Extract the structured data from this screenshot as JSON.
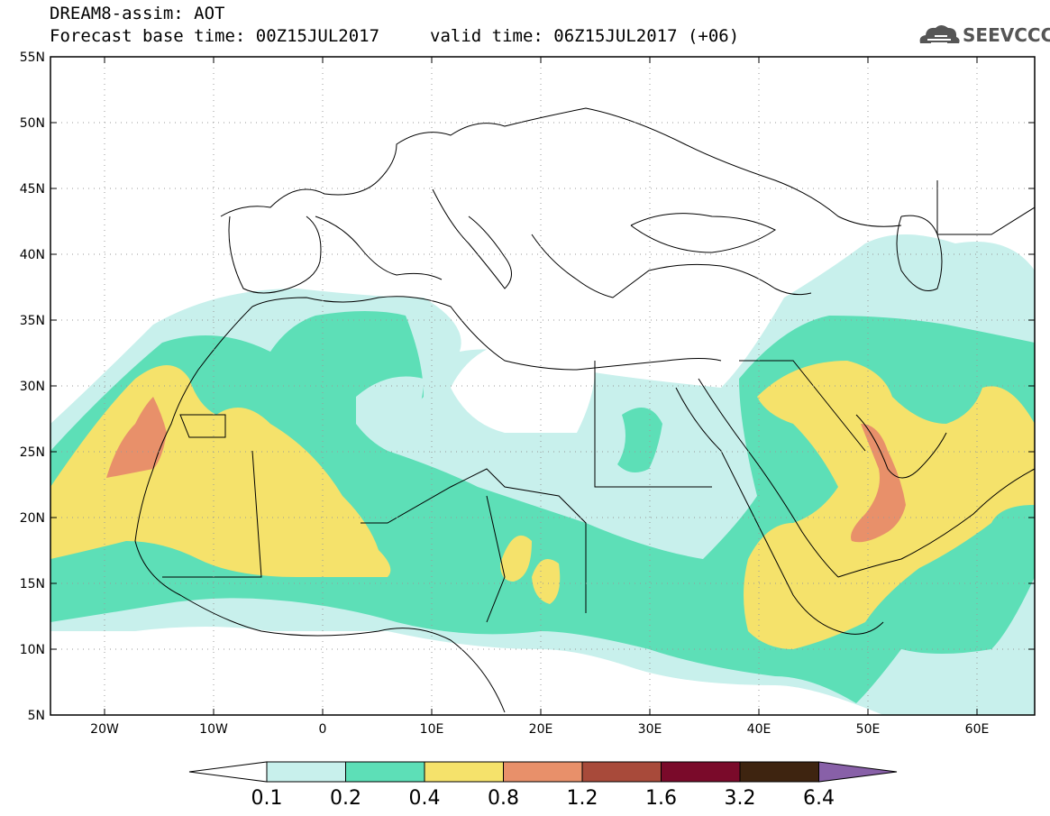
{
  "title": {
    "line1": "DREAM8-assim: AOT",
    "base_time": "Forecast base time: 00Z15JUL2017",
    "valid_time": "valid time: 06Z15JUL2017 (+06)"
  },
  "logo": {
    "text": "SEEVCCC",
    "icon": "cloud-icon"
  },
  "map": {
    "lat_labels": [
      "55N",
      "50N",
      "45N",
      "40N",
      "35N",
      "30N",
      "25N",
      "20N",
      "15N",
      "10N",
      "5N"
    ],
    "lon_labels": [
      "20W",
      "10W",
      "0",
      "10E",
      "20E",
      "30E",
      "40E",
      "50E",
      "60E"
    ],
    "lon_range": [
      -25,
      65
    ],
    "lat_range": [
      5,
      55
    ]
  },
  "colorbar": {
    "levels": [
      "0.1",
      "0.2",
      "0.4",
      "0.8",
      "1.2",
      "1.6",
      "3.2",
      "6.4"
    ],
    "colors": [
      "#c8f0ec",
      "#5ddfb7",
      "#f5e26b",
      "#e8906a",
      "#a84a3a",
      "#7a0a2a",
      "#3e2410",
      "#8860a8"
    ]
  },
  "field_colors": {
    "c01": "#c8f0ec",
    "c02": "#5ddfb7",
    "c04": "#f5e26b",
    "c08": "#e8906a"
  }
}
